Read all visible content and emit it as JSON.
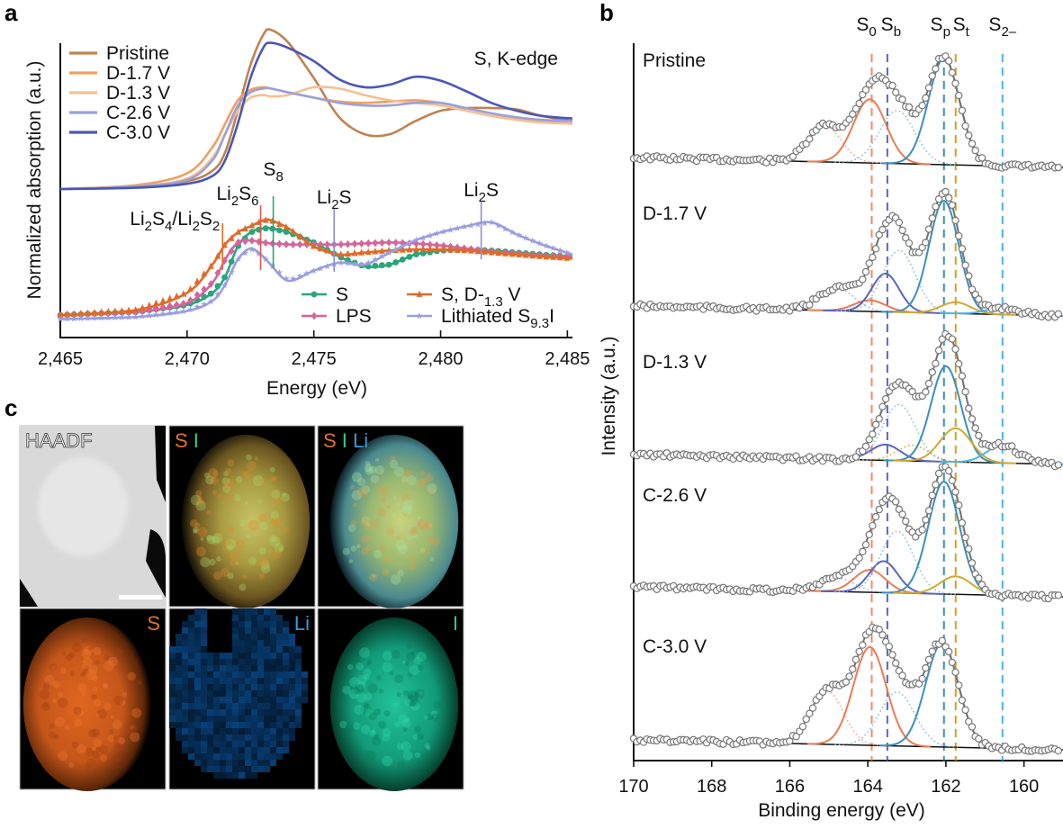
{
  "figure": {
    "panel_labels": {
      "a": "a",
      "b": "b",
      "c": "c"
    }
  },
  "chart_data": [
    {
      "panel": "a",
      "type": "line",
      "title": "S, K-edge",
      "xlabel": "Energy (eV)",
      "ylabel": "Normalized absorption (a.u.)",
      "xlim": [
        2465,
        2485.2
      ],
      "xticks": [
        2465,
        2470,
        2475,
        2480,
        2485
      ],
      "xtick_labels": [
        "2,465",
        "2,470",
        "2,475",
        "2,480",
        "2,485"
      ],
      "grid": false,
      "legend_upper": {
        "placement": "top-left",
        "entries": [
          "Pristine",
          "D-1.7 V",
          "D-1.3 V",
          "C-2.6 V",
          "C-3.0 V"
        ]
      },
      "legend_lower": {
        "placement": "bottom-right",
        "entries": [
          "S",
          "LPS",
          "S, D-1.3 V",
          "Lithiated S9.3I"
        ]
      },
      "x": [
        2465,
        2468,
        2470,
        2471,
        2471.5,
        2472,
        2472.5,
        2473,
        2473.3,
        2474,
        2475,
        2476,
        2477,
        2478,
        2479,
        2480,
        2481,
        2482,
        2483,
        2484,
        2485.2
      ],
      "series_upper": [
        {
          "name": "Pristine",
          "color": "#c0824f",
          "values": [
            0.0,
            0.02,
            0.06,
            0.14,
            0.28,
            0.6,
            0.95,
            1.18,
            1.22,
            1.12,
            0.85,
            0.55,
            0.42,
            0.42,
            0.52,
            0.6,
            0.62,
            0.62,
            0.61,
            0.56,
            0.52
          ]
        },
        {
          "name": "D-1.7 V",
          "color": "#f0a060",
          "values": [
            0.0,
            0.03,
            0.12,
            0.32,
            0.5,
            0.68,
            0.76,
            0.78,
            0.77,
            0.74,
            0.7,
            0.67,
            0.66,
            0.67,
            0.68,
            0.66,
            0.62,
            0.58,
            0.54,
            0.52,
            0.5
          ]
        },
        {
          "name": "D-1.3 V",
          "color": "#f5c090",
          "values": [
            0.0,
            0.02,
            0.08,
            0.24,
            0.42,
            0.6,
            0.7,
            0.72,
            0.71,
            0.72,
            0.78,
            0.77,
            0.72,
            0.68,
            0.66,
            0.64,
            0.6,
            0.56,
            0.53,
            0.51,
            0.5
          ]
        },
        {
          "name": "C-2.6 V",
          "color": "#9aa0dc",
          "values": [
            0.0,
            0.02,
            0.07,
            0.22,
            0.42,
            0.64,
            0.74,
            0.77,
            0.77,
            0.74,
            0.7,
            0.66,
            0.64,
            0.64,
            0.66,
            0.66,
            0.62,
            0.58,
            0.55,
            0.53,
            0.52
          ]
        },
        {
          "name": "C-3.0 V",
          "color": "#4a56b8",
          "values": [
            0.0,
            0.01,
            0.04,
            0.1,
            0.22,
            0.5,
            0.85,
            1.08,
            1.12,
            1.08,
            0.98,
            0.84,
            0.78,
            0.8,
            0.86,
            0.83,
            0.75,
            0.66,
            0.6,
            0.56,
            0.54
          ]
        }
      ],
      "series_lower": [
        {
          "name": "S",
          "marker": "circle",
          "color": "#2aa57a",
          "values": [
            0.0,
            0.03,
            0.1,
            0.22,
            0.38,
            0.68,
            0.82,
            0.86,
            0.86,
            0.82,
            0.72,
            0.58,
            0.48,
            0.5,
            0.6,
            0.64,
            0.65,
            0.64,
            0.62,
            0.6,
            0.58
          ]
        },
        {
          "name": "LPS",
          "marker": "diamond",
          "color": "#d4669c",
          "values": [
            0.0,
            0.03,
            0.12,
            0.32,
            0.55,
            0.72,
            0.74,
            0.72,
            0.71,
            0.7,
            0.7,
            0.7,
            0.71,
            0.72,
            0.71,
            0.69,
            0.66,
            0.63,
            0.61,
            0.59,
            0.58
          ]
        },
        {
          "name": "S, D-1.3 V",
          "marker": "triangle",
          "color": "#e06a28",
          "values": [
            0.0,
            0.05,
            0.22,
            0.5,
            0.7,
            0.82,
            0.88,
            0.94,
            0.94,
            0.86,
            0.68,
            0.6,
            0.62,
            0.64,
            0.65,
            0.65,
            0.64,
            0.62,
            0.6,
            0.58,
            0.56
          ]
        },
        {
          "name": "Lithiated S9.3I",
          "marker": "star",
          "color": "#9a9ee0",
          "values": [
            -0.04,
            -0.02,
            0.04,
            0.14,
            0.3,
            0.55,
            0.66,
            0.58,
            0.5,
            0.34,
            0.44,
            0.52,
            0.5,
            0.62,
            0.74,
            0.82,
            0.88,
            0.92,
            0.8,
            0.7,
            0.6
          ]
        }
      ],
      "annotations": [
        {
          "label": "Li2S4/Li2S2",
          "x": 2471.4,
          "color": "#e06a28"
        },
        {
          "label": "Li2S6",
          "x": 2472.9,
          "color": "#e05a50"
        },
        {
          "label": "S8",
          "x": 2473.4,
          "color": "#2aa57a"
        },
        {
          "label": "Li2S",
          "x": 2475.8,
          "color": "#8a90d8"
        },
        {
          "label": "Li2S",
          "x": 2481.6,
          "color": "#8a90d8"
        }
      ]
    },
    {
      "panel": "b",
      "type": "line",
      "title": "",
      "xlabel": "Binding energy (eV)",
      "ylabel": "Intensity (a.u.)",
      "xlim": [
        170,
        159
      ],
      "xticks": [
        170,
        168,
        166,
        164,
        162,
        160
      ],
      "xtick_labels": [
        "170",
        "168",
        "166",
        "164",
        "162",
        "160"
      ],
      "grid": false,
      "reference_lines": [
        {
          "label": "S0",
          "base": "S",
          "sub": "0",
          "x": 163.9,
          "color": "#f08a6a"
        },
        {
          "label": "Sb",
          "base": "S",
          "sub": "b",
          "x": 163.5,
          "color": "#5a64c0"
        },
        {
          "label": "Sp",
          "base": "S",
          "sub": "p",
          "x": 162.05,
          "color": "#3a8fb8"
        },
        {
          "label": "St",
          "base": "S",
          "sub": "t",
          "x": 161.75,
          "color": "#d4a020"
        },
        {
          "label": "S2-",
          "base": "S",
          "sub": "2–",
          "x": 160.55,
          "color": "#4ab4e6"
        }
      ],
      "component_colors": {
        "S0": "#ee7a50",
        "Sb": "#5a64c0",
        "Sp": "#3a90bc",
        "St": "#d0a830",
        "S2-": "#4ab4e6",
        "satellite": "#f4a08a",
        "bridge_dotted": "#88b8dc",
        "envelope": "#707070",
        "background": "#111111",
        "data": "#777777"
      },
      "spectra": [
        {
          "label": "Pristine",
          "components": [
            {
              "name": "satellite-S0",
              "center": 165.1,
              "amp": 0.34,
              "sigma": 0.42,
              "style": "dotted",
              "color_key": "satellite"
            },
            {
              "name": "S0",
              "center": 163.95,
              "amp": 0.6,
              "sigma": 0.42,
              "style": "solid",
              "color_key": "S0"
            },
            {
              "name": "Sb-dotted",
              "center": 163.25,
              "amp": 0.5,
              "sigma": 0.45,
              "style": "dotted",
              "color_key": "bridge_dotted"
            },
            {
              "name": "Sp",
              "center": 162.05,
              "amp": 1.0,
              "sigma": 0.4,
              "style": "solid",
              "color_key": "Sp"
            }
          ]
        },
        {
          "label": "D-1.7 V",
          "components": [
            {
              "name": "sat-dotted",
              "center": 164.8,
              "amp": 0.2,
              "sigma": 0.45,
              "style": "dotted",
              "color_key": "bridge_dotted"
            },
            {
              "name": "S0",
              "center": 163.95,
              "amp": 0.1,
              "sigma": 0.4,
              "style": "solid",
              "color_key": "S0"
            },
            {
              "name": "Sb",
              "center": 163.55,
              "amp": 0.34,
              "sigma": 0.35,
              "style": "solid",
              "color_key": "Sb"
            },
            {
              "name": "Sb-dotted",
              "center": 163.2,
              "amp": 0.55,
              "sigma": 0.42,
              "style": "dotted",
              "color_key": "bridge_dotted"
            },
            {
              "name": "Sp",
              "center": 162.05,
              "amp": 1.0,
              "sigma": 0.38,
              "style": "solid",
              "color_key": "Sp"
            },
            {
              "name": "St",
              "center": 161.75,
              "amp": 0.1,
              "sigma": 0.38,
              "style": "solid",
              "color_key": "St"
            },
            {
              "name": "S2-",
              "center": 160.55,
              "amp": 0.06,
              "sigma": 0.4,
              "style": "solid",
              "color_key": "S2-"
            }
          ]
        },
        {
          "label": "D-1.3 V",
          "components": [
            {
              "name": "Sb",
              "center": 163.55,
              "amp": 0.14,
              "sigma": 0.38,
              "style": "solid",
              "color_key": "Sb"
            },
            {
              "name": "Sb-dotted",
              "center": 163.2,
              "amp": 0.5,
              "sigma": 0.42,
              "style": "dotted",
              "color_key": "bridge_dotted"
            },
            {
              "name": "St-dotted",
              "center": 162.85,
              "amp": 0.14,
              "sigma": 0.4,
              "style": "dotted",
              "color_key": "St"
            },
            {
              "name": "Sp",
              "center": 162.0,
              "amp": 0.85,
              "sigma": 0.38,
              "style": "solid",
              "color_key": "Sp"
            },
            {
              "name": "St",
              "center": 161.75,
              "amp": 0.3,
              "sigma": 0.4,
              "style": "solid",
              "color_key": "St"
            },
            {
              "name": "S2-",
              "center": 160.55,
              "amp": 0.16,
              "sigma": 0.4,
              "style": "solid",
              "color_key": "S2-"
            }
          ]
        },
        {
          "label": "C-2.6 V",
          "components": [
            {
              "name": "sat-dotted",
              "center": 164.8,
              "amp": 0.12,
              "sigma": 0.45,
              "style": "dotted",
              "color_key": "bridge_dotted"
            },
            {
              "name": "S0",
              "center": 163.95,
              "amp": 0.2,
              "sigma": 0.4,
              "style": "solid",
              "color_key": "S0"
            },
            {
              "name": "Sb",
              "center": 163.6,
              "amp": 0.28,
              "sigma": 0.36,
              "style": "solid",
              "color_key": "Sb"
            },
            {
              "name": "Sb-dotted",
              "center": 163.25,
              "amp": 0.55,
              "sigma": 0.42,
              "style": "dotted",
              "color_key": "bridge_dotted"
            },
            {
              "name": "Sp",
              "center": 162.05,
              "amp": 1.0,
              "sigma": 0.4,
              "style": "solid",
              "color_key": "Sp"
            },
            {
              "name": "St",
              "center": 161.75,
              "amp": 0.16,
              "sigma": 0.4,
              "style": "solid",
              "color_key": "St"
            }
          ]
        },
        {
          "label": "C-3.0 V",
          "components": [
            {
              "name": "satellite-S0",
              "center": 165.05,
              "amp": 0.52,
              "sigma": 0.42,
              "style": "dotted",
              "color_key": "satellite"
            },
            {
              "name": "S0",
              "center": 163.95,
              "amp": 0.95,
              "sigma": 0.42,
              "style": "solid",
              "color_key": "S0"
            },
            {
              "name": "Sb-dotted",
              "center": 163.25,
              "amp": 0.52,
              "sigma": 0.45,
              "style": "dotted",
              "color_key": "bridge_dotted"
            },
            {
              "name": "Sp",
              "center": 162.1,
              "amp": 1.0,
              "sigma": 0.42,
              "style": "solid",
              "color_key": "Sp"
            }
          ]
        }
      ]
    }
  ],
  "panel_c": {
    "tiles": [
      {
        "id": "haadf",
        "label_parts": [
          {
            "text": "HAADF",
            "color": "#ffffff"
          }
        ],
        "kind": "grayscale",
        "scale_bar": true
      },
      {
        "id": "s-i",
        "label_parts": [
          {
            "text": "S",
            "color": "#e8702a"
          },
          {
            "text": " I",
            "color": "#3cc88a"
          }
        ],
        "kind": "overlay-si"
      },
      {
        "id": "s-i-li",
        "label_parts": [
          {
            "text": "S",
            "color": "#e8702a"
          },
          {
            "text": " I",
            "color": "#3cc88a"
          },
          {
            "text": " Li",
            "color": "#3a9ad8"
          }
        ],
        "kind": "overlay-sili"
      },
      {
        "id": "s-map",
        "label_parts": [
          {
            "text": "S",
            "color": "#e8702a"
          }
        ],
        "kind": "map-s",
        "label_align": "right"
      },
      {
        "id": "li-map",
        "label_parts": [
          {
            "text": "Li",
            "color": "#3a9ad8"
          }
        ],
        "kind": "map-li",
        "label_align": "right"
      },
      {
        "id": "i-map",
        "label_parts": [
          {
            "text": "I",
            "color": "#3cc88a"
          }
        ],
        "kind": "map-i",
        "label_align": "right"
      }
    ]
  }
}
